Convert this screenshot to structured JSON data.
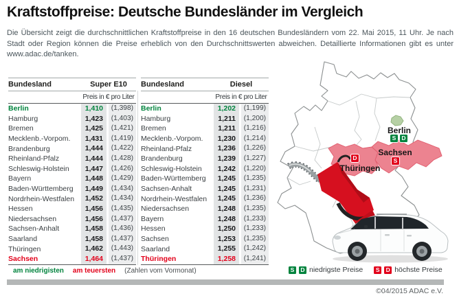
{
  "header": {
    "title": "Kraftstoffpreise: Deutsche Bundesländer im Vergleich",
    "intro": "Die Übersicht zeigt die durchschnittlichen Kraftstoffpreise in den 16 deutschen Bundesländern vom 22. Mai 2015, 11 Uhr. Je nach Stadt oder Region können die Preise erheblich von den Durchschnittswerten abweichen. Detaillierte Informationen gibt es unter www.adac.de/tanken."
  },
  "tables": [
    {
      "col_header": "Bundesland",
      "fuel_label": "Super E10",
      "subheader": "Preis in € pro Liter",
      "rows": [
        {
          "state": "Berlin",
          "price": "1,410",
          "prev": "(1,398)",
          "highlight": "low"
        },
        {
          "state": "Hamburg",
          "price": "1,423",
          "prev": "(1,403)"
        },
        {
          "state": "Bremen",
          "price": "1,425",
          "prev": "(1,421)"
        },
        {
          "state": "Mecklenb.-Vorpom.",
          "price": "1,431",
          "prev": "(1,419)"
        },
        {
          "state": "Brandenburg",
          "price": "1,444",
          "prev": "(1,422)"
        },
        {
          "state": "Rheinland-Pfalz",
          "price": "1,444",
          "prev": "(1,428)"
        },
        {
          "state": "Schleswig-Holstein",
          "price": "1,447",
          "prev": "(1,426)"
        },
        {
          "state": "Bayern",
          "price": "1,448",
          "prev": "(1,429)"
        },
        {
          "state": "Baden-Württemberg",
          "price": "1,449",
          "prev": "(1,434)"
        },
        {
          "state": "Nordrhein-Westfalen",
          "price": "1,452",
          "prev": "(1,434)"
        },
        {
          "state": "Hessen",
          "price": "1,456",
          "prev": "(1,435)"
        },
        {
          "state": "Niedersachsen",
          "price": "1,456",
          "prev": "(1,437)"
        },
        {
          "state": "Sachsen-Anhalt",
          "price": "1,458",
          "prev": "(1,436)"
        },
        {
          "state": "Saarland",
          "price": "1,458",
          "prev": "(1,437)"
        },
        {
          "state": "Thüringen",
          "price": "1,462",
          "prev": "(1,443)"
        },
        {
          "state": "Sachsen",
          "price": "1,464",
          "prev": "(1,437)",
          "highlight": "high"
        }
      ]
    },
    {
      "col_header": "Bundesland",
      "fuel_label": "Diesel",
      "subheader": "Preis in € pro Liter",
      "rows": [
        {
          "state": "Berlin",
          "price": "1,202",
          "prev": "(1,199)",
          "highlight": "low"
        },
        {
          "state": "Hamburg",
          "price": "1,211",
          "prev": "(1,200)"
        },
        {
          "state": "Bremen",
          "price": "1,211",
          "prev": "(1,216)"
        },
        {
          "state": "Mecklenb.-Vorpom.",
          "price": "1,230",
          "prev": "(1,214)"
        },
        {
          "state": "Rheinland-Pfalz",
          "price": "1,236",
          "prev": "(1,226)"
        },
        {
          "state": "Brandenburg",
          "price": "1,239",
          "prev": "(1,227)"
        },
        {
          "state": "Schleswig-Holstein",
          "price": "1,242",
          "prev": "(1,220)"
        },
        {
          "state": "Baden-Württemberg",
          "price": "1,245",
          "prev": "(1,235)"
        },
        {
          "state": "Sachsen-Anhalt",
          "price": "1,245",
          "prev": "(1,231)"
        },
        {
          "state": "Nordrhein-Westfalen",
          "price": "1,245",
          "prev": "(1,236)"
        },
        {
          "state": "Niedersachsen",
          "price": "1,248",
          "prev": "(1,235)"
        },
        {
          "state": "Bayern",
          "price": "1,248",
          "prev": "(1,233)"
        },
        {
          "state": "Hessen",
          "price": "1,250",
          "prev": "(1,233)"
        },
        {
          "state": "Sachsen",
          "price": "1,253",
          "prev": "(1,235)"
        },
        {
          "state": "Saarland",
          "price": "1,255",
          "prev": "(1,242)"
        },
        {
          "state": "Thüringen",
          "price": "1,258",
          "prev": "(1,241)",
          "highlight": "high"
        }
      ]
    }
  ],
  "table_legend": {
    "lowest": "am niedrigisten",
    "highest": "am teuersten",
    "note": "(Zahlen vom Vormonat)"
  },
  "map": {
    "berlin_label": "Berlin",
    "sachsen_label": "Sachsen",
    "thueringen_label": "Thüringen",
    "badge_s": "S",
    "badge_d": "D",
    "legend_low": "niedrigste Preise",
    "legend_high": "höchste Preise"
  },
  "footer": {
    "copyright": "©04/2015 ADAC e.V."
  },
  "colors": {
    "green": "#00833d",
    "red": "#e2001a",
    "map-pink": "#ec8390",
    "berlin-green": "#b6d0a5"
  },
  "chart_data": [
    {
      "type": "table",
      "title": "Super E10",
      "columns": [
        "Bundesland",
        "Preis in € pro Liter",
        "Vormonat"
      ],
      "rows": [
        [
          "Berlin",
          1.41,
          1.398
        ],
        [
          "Hamburg",
          1.423,
          1.403
        ],
        [
          "Bremen",
          1.425,
          1.421
        ],
        [
          "Mecklenb.-Vorpom.",
          1.431,
          1.419
        ],
        [
          "Brandenburg",
          1.444,
          1.422
        ],
        [
          "Rheinland-Pfalz",
          1.444,
          1.428
        ],
        [
          "Schleswig-Holstein",
          1.447,
          1.426
        ],
        [
          "Bayern",
          1.448,
          1.429
        ],
        [
          "Baden-Württemberg",
          1.449,
          1.434
        ],
        [
          "Nordrhein-Westfalen",
          1.452,
          1.434
        ],
        [
          "Hessen",
          1.456,
          1.435
        ],
        [
          "Niedersachsen",
          1.456,
          1.437
        ],
        [
          "Sachsen-Anhalt",
          1.458,
          1.436
        ],
        [
          "Saarland",
          1.458,
          1.437
        ],
        [
          "Thüringen",
          1.462,
          1.443
        ],
        [
          "Sachsen",
          1.464,
          1.437
        ]
      ],
      "lowest": "Berlin",
      "highest": "Sachsen"
    },
    {
      "type": "table",
      "title": "Diesel",
      "columns": [
        "Bundesland",
        "Preis in € pro Liter",
        "Vormonat"
      ],
      "rows": [
        [
          "Berlin",
          1.202,
          1.199
        ],
        [
          "Hamburg",
          1.211,
          1.2
        ],
        [
          "Bremen",
          1.211,
          1.216
        ],
        [
          "Mecklenb.-Vorpom.",
          1.23,
          1.214
        ],
        [
          "Rheinland-Pfalz",
          1.236,
          1.226
        ],
        [
          "Brandenburg",
          1.239,
          1.227
        ],
        [
          "Schleswig-Holstein",
          1.242,
          1.22
        ],
        [
          "Baden-Württemberg",
          1.245,
          1.235
        ],
        [
          "Sachsen-Anhalt",
          1.245,
          1.231
        ],
        [
          "Nordrhein-Westfalen",
          1.245,
          1.236
        ],
        [
          "Niedersachsen",
          1.248,
          1.235
        ],
        [
          "Bayern",
          1.248,
          1.233
        ],
        [
          "Hessen",
          1.25,
          1.233
        ],
        [
          "Sachsen",
          1.253,
          1.235
        ],
        [
          "Saarland",
          1.255,
          1.242
        ],
        [
          "Thüringen",
          1.258,
          1.241
        ]
      ],
      "lowest": "Berlin",
      "highest": "Thüringen"
    }
  ]
}
